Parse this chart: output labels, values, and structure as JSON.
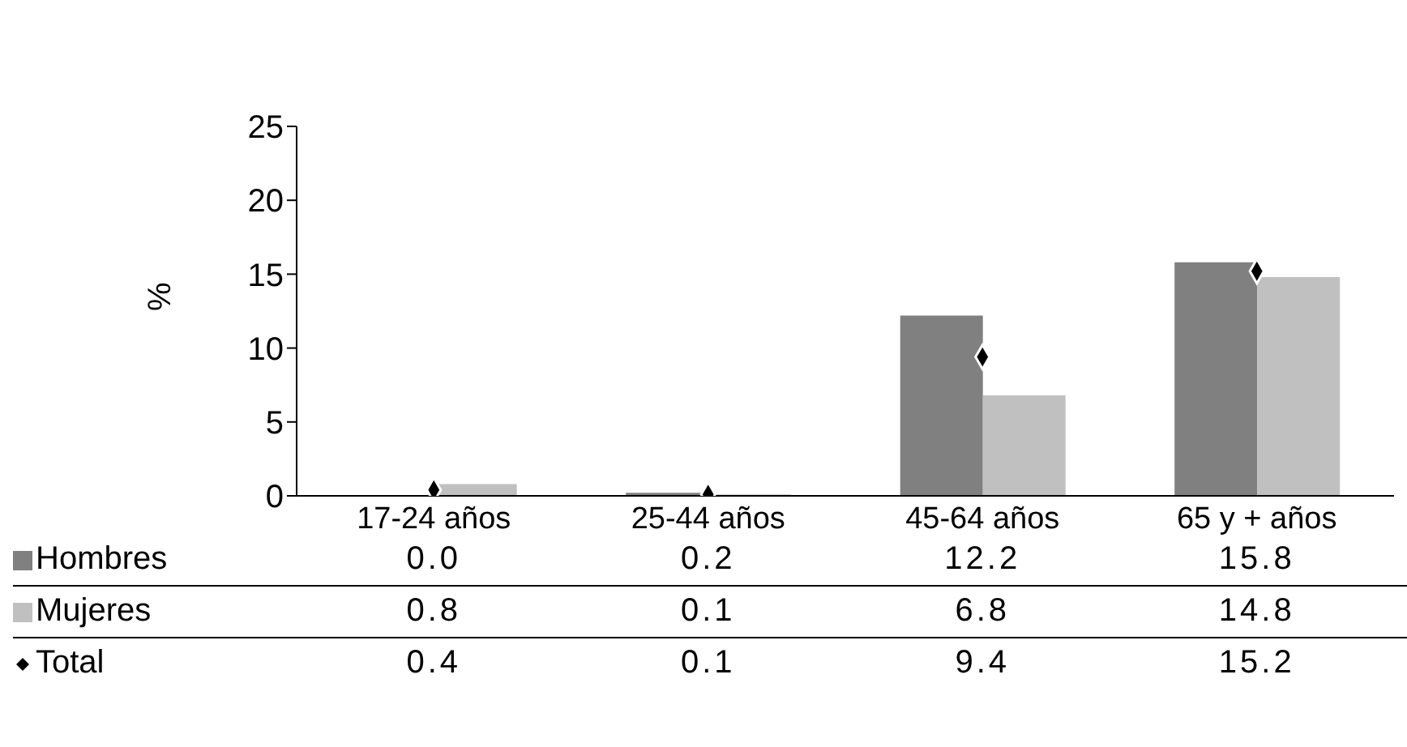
{
  "chart_data": {
    "type": "bar",
    "ylabel": "%",
    "categories": [
      "17-24 años",
      "25-44 años",
      "45-64 años",
      "65 y + años"
    ],
    "ylim": [
      0,
      25
    ],
    "yticks": [
      0,
      5,
      10,
      15,
      20,
      25
    ],
    "legend": "bottom",
    "series": [
      {
        "name": "Hombres",
        "color": "#808080",
        "values": [
          0.0,
          0.2,
          12.2,
          15.8
        ],
        "value_labels": [
          "0.0",
          "0.2",
          "12.2",
          "15.8"
        ]
      },
      {
        "name": "Mujeres",
        "color": "#c0c0c0",
        "values": [
          0.8,
          0.1,
          6.8,
          14.8
        ],
        "value_labels": [
          "0.8",
          "0.1",
          "6.8",
          "14.8"
        ]
      },
      {
        "name": "Total",
        "type": "scatter",
        "marker": "diamond",
        "color": "#000000",
        "values": [
          0.4,
          0.1,
          9.4,
          15.2
        ],
        "value_labels": [
          "0.4",
          "0.1",
          "9.4",
          "15.2"
        ]
      }
    ]
  }
}
